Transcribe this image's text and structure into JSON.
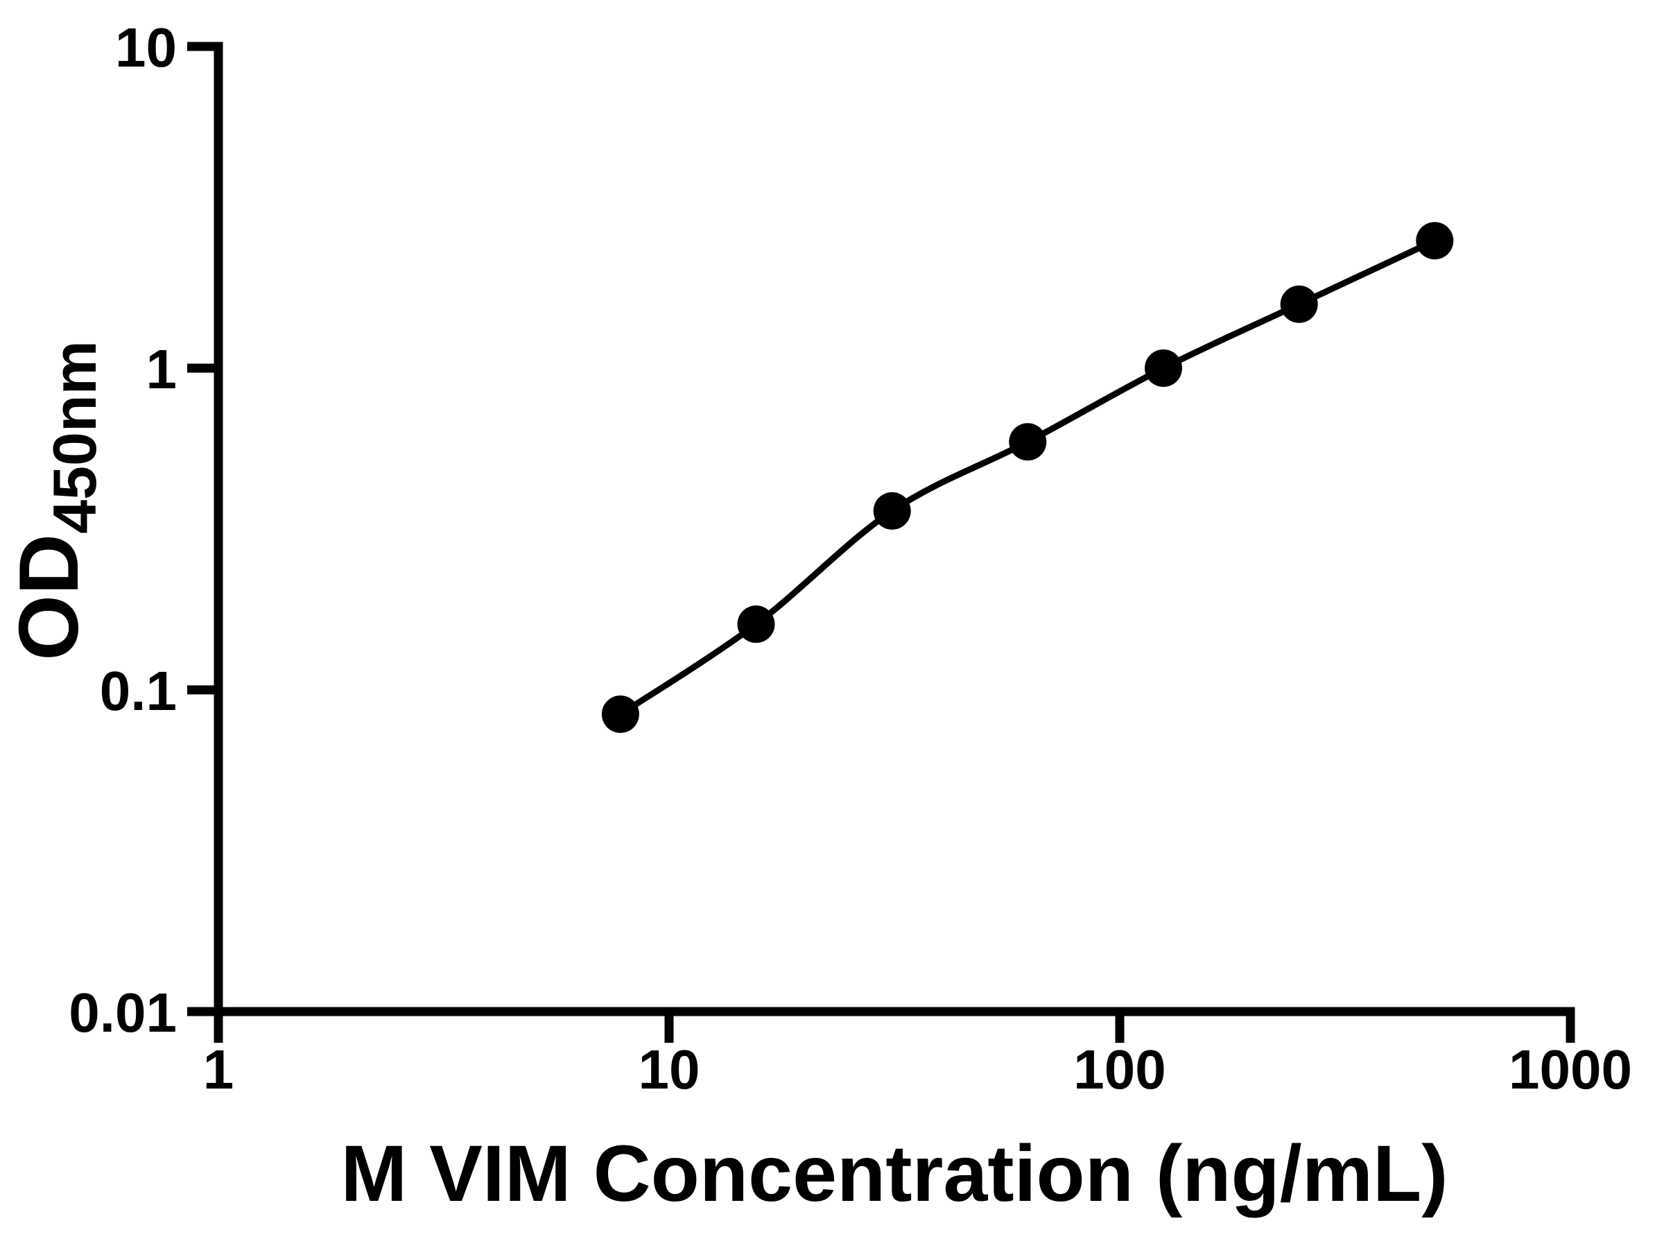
{
  "figure": {
    "background": "#ffffff",
    "foreground": "#000000"
  },
  "chart_data": {
    "type": "scatter",
    "subtype": "standard-curve-with-smooth-fit-line",
    "title": "",
    "xlabel": "M VIM Concentration (ng/mL)",
    "ylabel_main": "OD",
    "ylabel_sub": "450nm",
    "x_scale": "log",
    "y_scale": "log",
    "xlim": [
      1,
      1000
    ],
    "ylim": [
      0.01,
      10
    ],
    "grid": false,
    "legend": "none",
    "x": [
      7.8,
      15.6,
      31.25,
      62.5,
      125,
      250,
      500
    ],
    "y": [
      0.084,
      0.16,
      0.36,
      0.59,
      1.0,
      1.58,
      2.49
    ],
    "x_ticks": [
      {
        "value": 1,
        "label": "1"
      },
      {
        "value": 10,
        "label": "10"
      },
      {
        "value": 100,
        "label": "100"
      },
      {
        "value": 1000,
        "label": "1000"
      }
    ],
    "y_ticks": [
      {
        "value": 0.01,
        "label": "0.01"
      },
      {
        "value": 0.1,
        "label": "0.1"
      },
      {
        "value": 1,
        "label": "1"
      },
      {
        "value": 10,
        "label": "10"
      }
    ],
    "marker": "filled-circle",
    "marker_color": "#000000",
    "line_color": "#000000",
    "axis_color": "#000000"
  }
}
